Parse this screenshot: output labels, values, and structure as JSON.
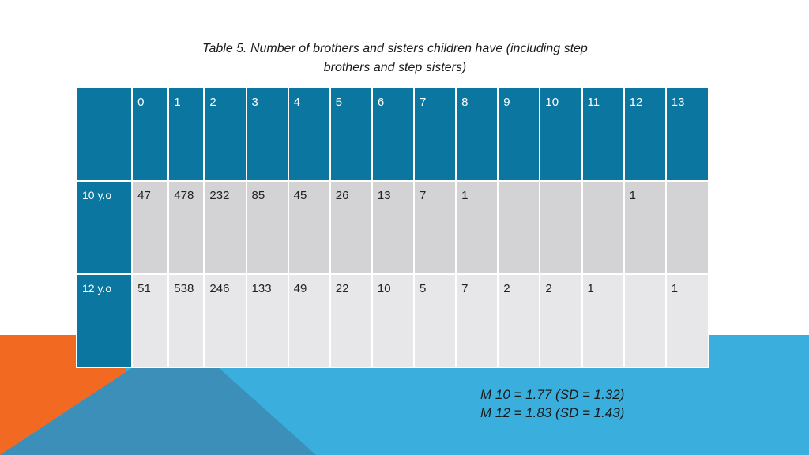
{
  "title": {
    "line1": "Table 5. Number of brothers and sisters children have (including step",
    "line2": "brothers and step sisters)"
  },
  "table": {
    "columns": [
      "0",
      "1",
      "2",
      "3",
      "4",
      "5",
      "6",
      "7",
      "8",
      "9",
      "10",
      "11",
      "12",
      "13"
    ],
    "rows": [
      {
        "label": "10 y.o",
        "values": [
          "47",
          "478",
          "232",
          "85",
          "45",
          "26",
          "13",
          "7",
          "1",
          "",
          "",
          "",
          "1",
          ""
        ]
      },
      {
        "label": "12 y.o",
        "values": [
          "51",
          "538",
          "246",
          "133",
          "49",
          "22",
          "10",
          "5",
          "7",
          "2",
          "2",
          "1",
          "",
          "1"
        ]
      }
    ]
  },
  "stats": {
    "line1": "M 10 = 1.77 (SD = 1.32)",
    "line2": "M 12 = 1.83 (SD = 1.43)"
  },
  "colors": {
    "header_blue": "#0B76A0",
    "row_gray_dark": "#D3D3D6",
    "row_gray_light": "#E7E7E9",
    "accent_orange": "#F26A21",
    "accent_light_blue": "#3AAEDC",
    "accent_mid_blue": "#3B8FB8"
  }
}
